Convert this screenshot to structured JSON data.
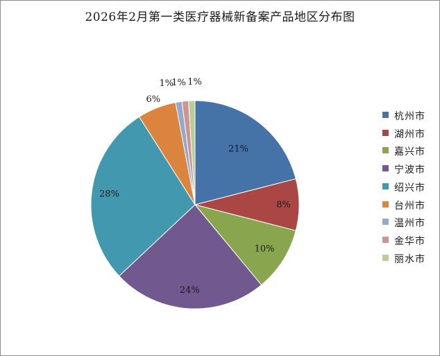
{
  "chart_data": {
    "type": "pie",
    "title": "2026年2月第一类医疗器械新备案产品地区分布图",
    "categories": [
      "杭州市",
      "湖州市",
      "嘉兴市",
      "宁波市",
      "绍兴市",
      "台州市",
      "温州市",
      "金华市",
      "丽水市"
    ],
    "values": [
      21,
      8,
      10,
      24,
      28,
      6,
      1,
      1,
      1
    ],
    "labels": [
      "21%",
      "8%",
      "10%",
      "24%",
      "28%",
      "6%",
      "1%",
      "1%",
      "1%"
    ],
    "colors": [
      "#4572A7",
      "#AA4643",
      "#89A54E",
      "#71588F",
      "#4198AF",
      "#DB843D",
      "#93A9CF",
      "#D19392",
      "#B9CD96"
    ],
    "legend_position": "right"
  }
}
